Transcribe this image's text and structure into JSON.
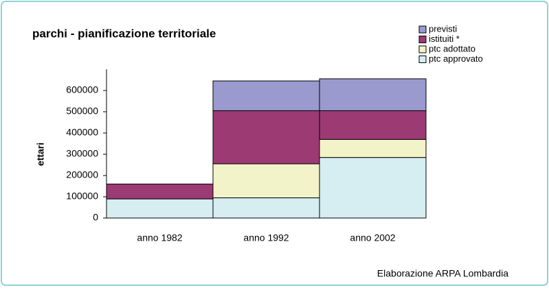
{
  "chart_data": {
    "type": "bar",
    "stacked": true,
    "title": "parchi - pianificazione territoriale",
    "y_label": "ettari",
    "footer": "Elaborazione ARPA Lombardia",
    "categories": [
      "anno 1982",
      "anno 1992",
      "anno 2002"
    ],
    "series": [
      {
        "name": "ptc approvato",
        "color": "#d6eef1",
        "values": [
          90000,
          95000,
          285000
        ]
      },
      {
        "name": "ptc adottato",
        "color": "#f3f3c9",
        "values": [
          0,
          160000,
          85000
        ]
      },
      {
        "name": "istituiti *",
        "color": "#9c3a74",
        "values": [
          70000,
          250000,
          135000
        ]
      },
      {
        "name": "previsti",
        "color": "#9a9ace",
        "values": [
          0,
          140000,
          150000
        ]
      }
    ],
    "ylim": [
      0,
      700000
    ],
    "yticks": [
      0,
      100000,
      200000,
      300000,
      400000,
      500000,
      600000
    ],
    "legend": "top-right"
  }
}
